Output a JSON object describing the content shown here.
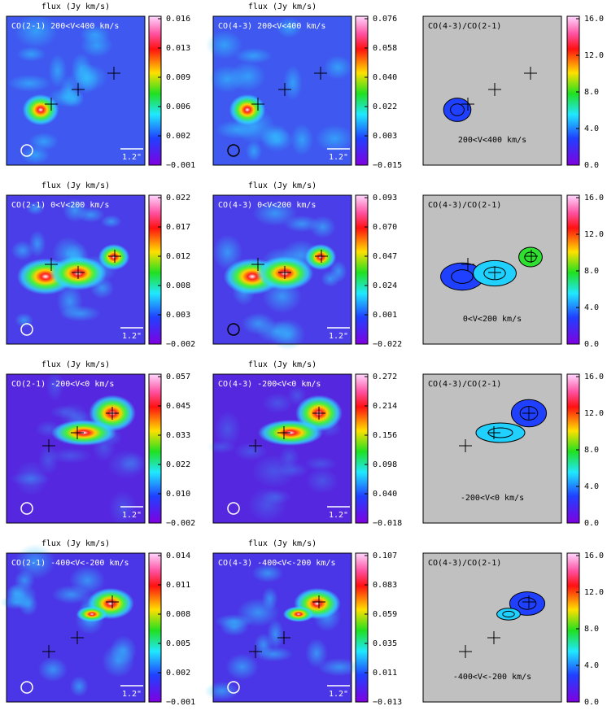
{
  "rows": [
    {
      "panels": [
        {
          "header": "flux (Jy km/s)",
          "label": "CO(2-1) 200<V<400 km/s",
          "scale": "1.2\"",
          "colorbar_ticks": [
            "0.016",
            "0.013",
            "0.009",
            "0.006",
            "0.002",
            "−0.001"
          ]
        },
        {
          "header": "flux (Jy km/s)",
          "label": "CO(4-3) 200<V<400 km/s",
          "scale": "1.2\"",
          "colorbar_ticks": [
            "0.076",
            "0.058",
            "0.040",
            "0.022",
            "0.003",
            "−0.015"
          ]
        },
        {
          "label": "CO(4-3)/CO(2-1)",
          "velocity": "200<V<400 km/s",
          "colorbar_ticks": [
            "16.0",
            "12.0",
            "8.0",
            "4.0",
            "0.0"
          ]
        }
      ]
    },
    {
      "panels": [
        {
          "header": "flux (Jy km/s)",
          "label": "CO(2-1) 0<V<200 km/s",
          "scale": "1.2\"",
          "colorbar_ticks": [
            "0.022",
            "0.017",
            "0.012",
            "0.008",
            "0.003",
            "−0.002"
          ]
        },
        {
          "header": "flux (Jy km/s)",
          "label": "CO(4-3) 0<V<200 km/s",
          "scale": "1.2\"",
          "colorbar_ticks": [
            "0.093",
            "0.070",
            "0.047",
            "0.024",
            "0.001",
            "−0.022"
          ]
        },
        {
          "label": "CO(4-3)/CO(2-1)",
          "velocity": "0<V<200 km/s",
          "colorbar_ticks": [
            "16.0",
            "12.0",
            "8.0",
            "4.0",
            "0.0"
          ]
        }
      ]
    },
    {
      "panels": [
        {
          "header": "flux (Jy km/s)",
          "label": "CO(2-1) -200<V<0 km/s",
          "scale": "1.2\"",
          "colorbar_ticks": [
            "0.057",
            "0.045",
            "0.033",
            "0.022",
            "0.010",
            "−0.002"
          ]
        },
        {
          "header": "flux (Jy km/s)",
          "label": "CO(4-3) -200<V<0 km/s",
          "scale": "1.2\"",
          "colorbar_ticks": [
            "0.272",
            "0.214",
            "0.156",
            "0.098",
            "0.040",
            "−0.018"
          ]
        },
        {
          "label": "CO(4-3)/CO(2-1)",
          "velocity": "-200<V<0 km/s",
          "colorbar_ticks": [
            "16.0",
            "12.0",
            "8.0",
            "4.0",
            "0.0"
          ]
        }
      ]
    },
    {
      "panels": [
        {
          "header": "flux (Jy km/s)",
          "label": "CO(2-1) -400<V<-200 km/s",
          "scale": "1.2\"",
          "colorbar_ticks": [
            "0.014",
            "0.011",
            "0.008",
            "0.005",
            "0.002",
            "−0.001"
          ]
        },
        {
          "header": "flux (Jy km/s)",
          "label": "CO(4-3) -400<V<-200 km/s",
          "scale": "1.2\"",
          "colorbar_ticks": [
            "0.107",
            "0.083",
            "0.059",
            "0.035",
            "0.011",
            "−0.013"
          ]
        },
        {
          "label": "CO(4-3)/CO(2-1)",
          "velocity": "-400<V<-200 km/s",
          "colorbar_ticks": [
            "16.0",
            "12.0",
            "8.0",
            "4.0",
            "0.0"
          ]
        }
      ]
    }
  ]
}
